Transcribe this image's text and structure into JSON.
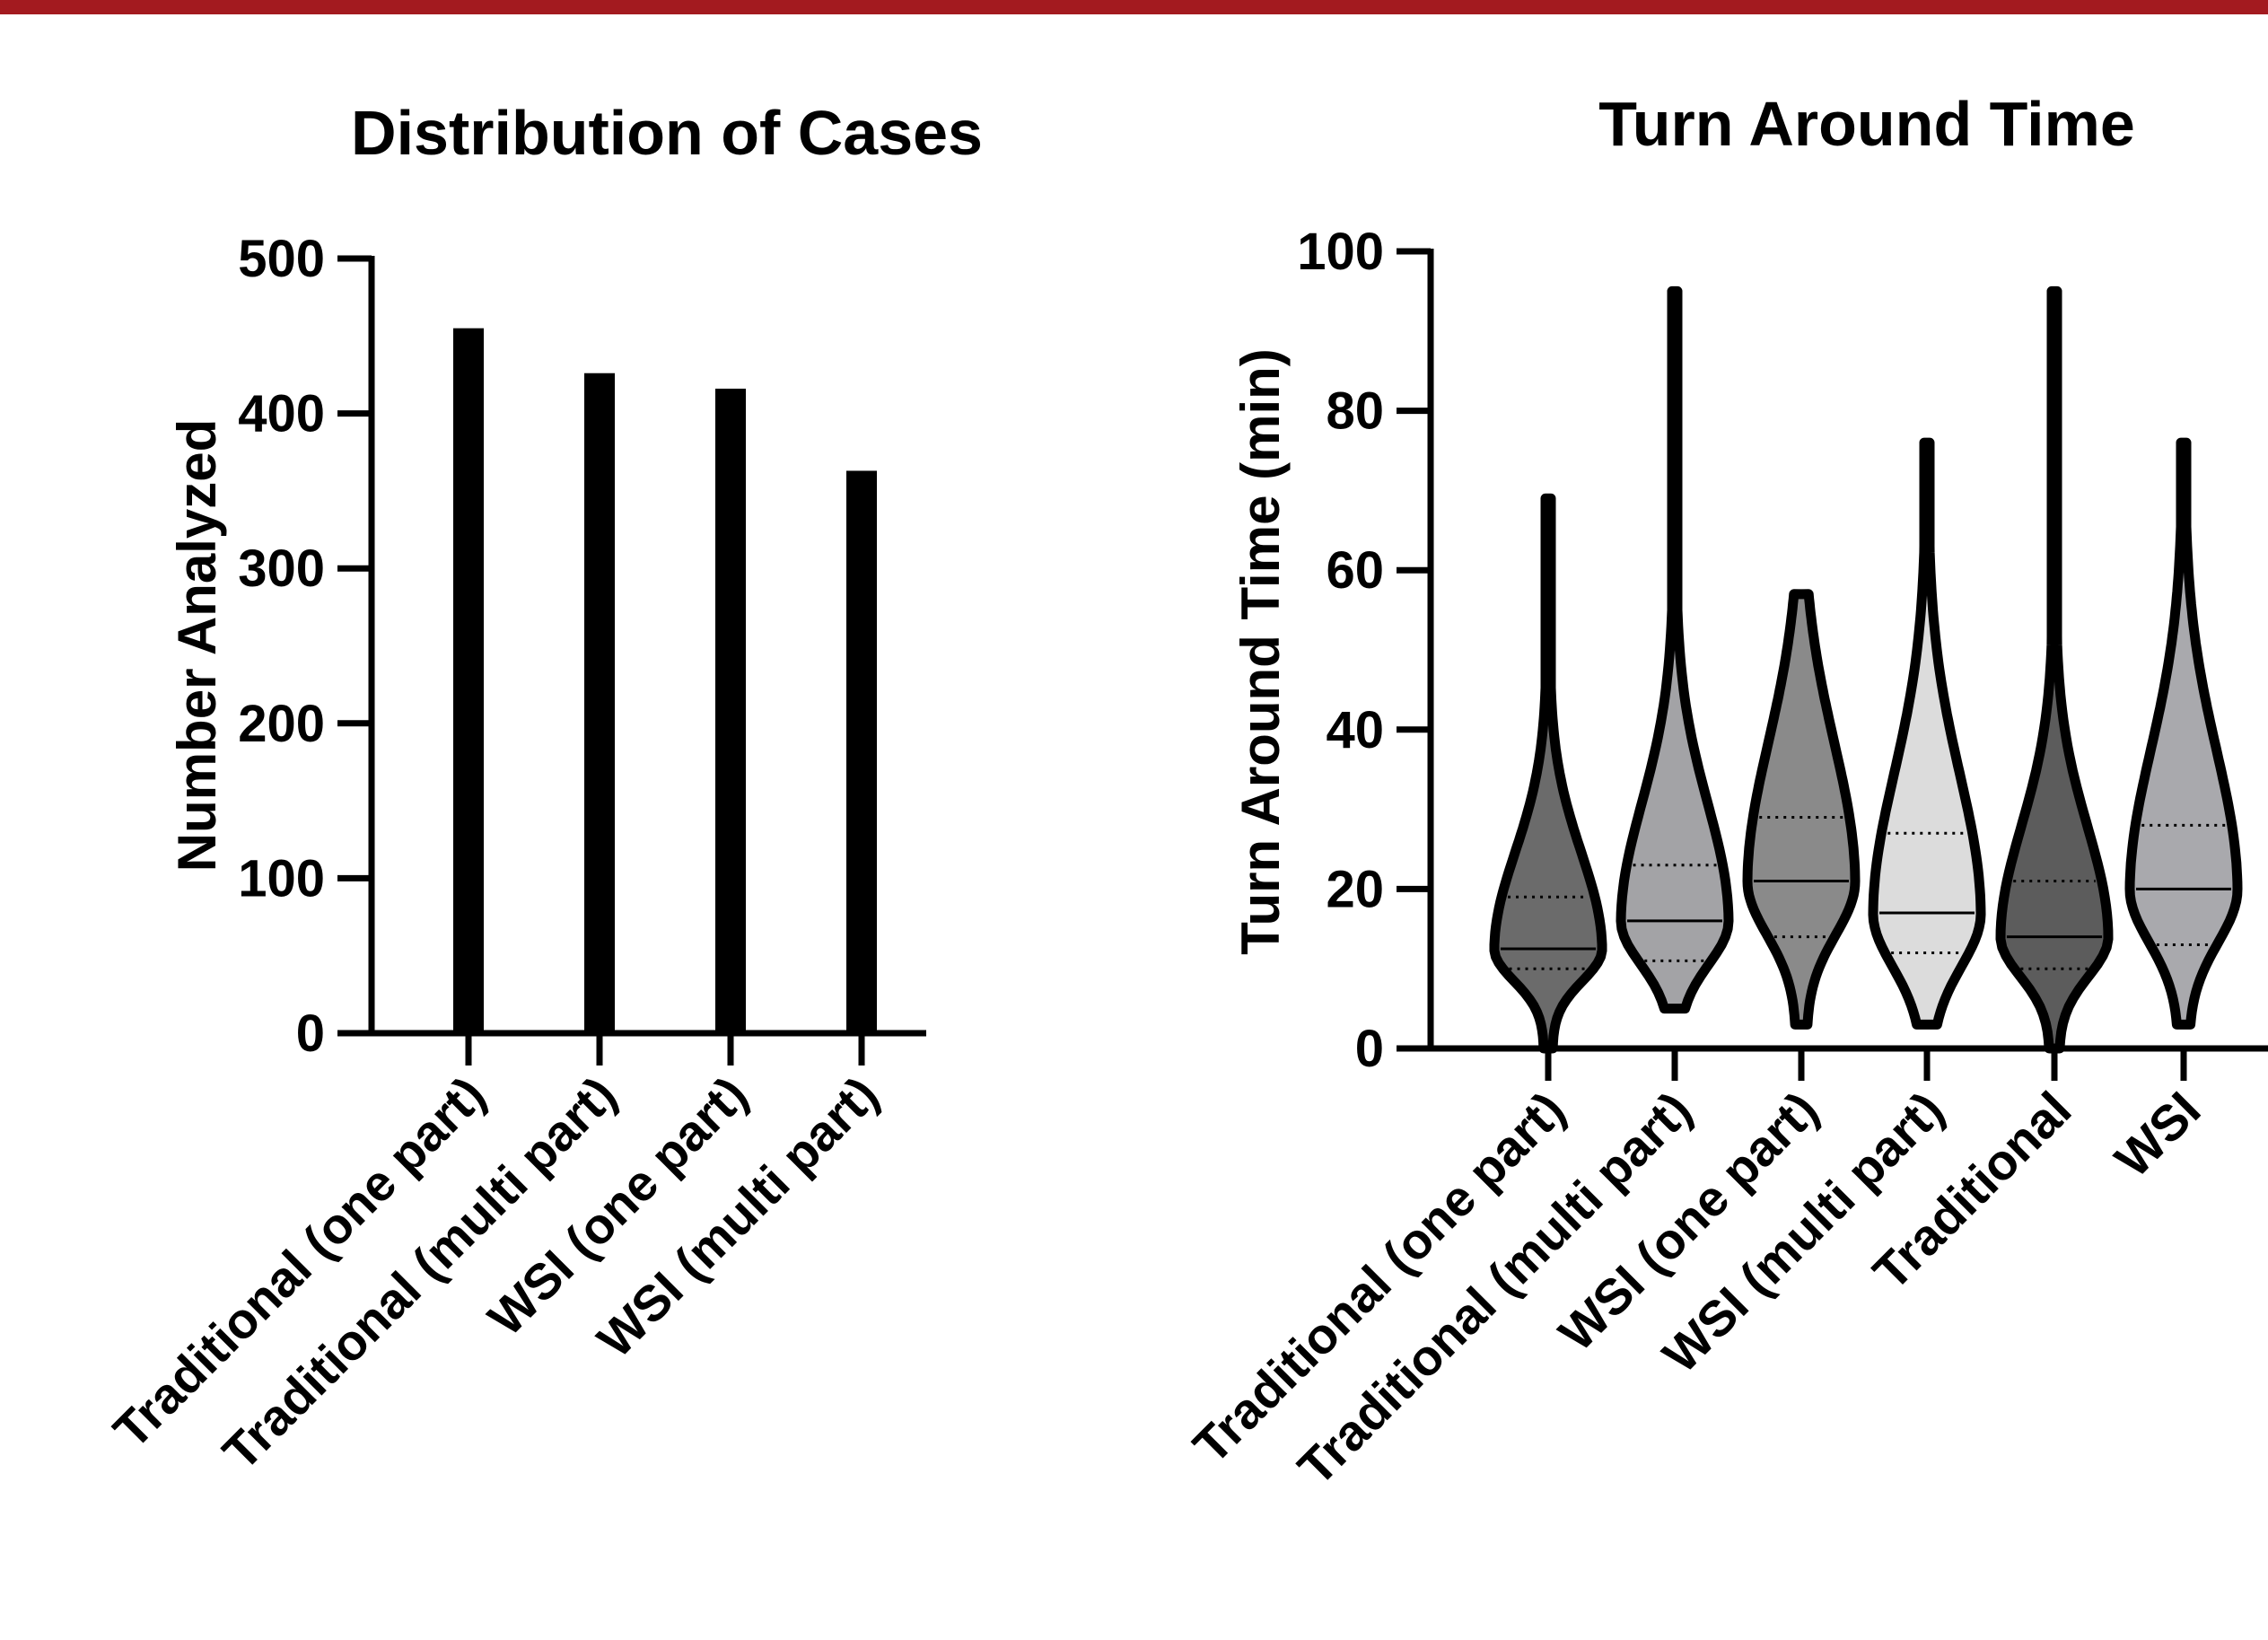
{
  "colors": {
    "top_bar": "#a31a1f",
    "bar_fill": "#000000",
    "violin_fills": [
      "#6b6b6b",
      "#a3a3a6",
      "#8a8a8a",
      "#dcdcdc",
      "#5c5c5c",
      "#a9a9ad"
    ]
  },
  "chart_data": [
    {
      "type": "bar",
      "title": "Distribution of Cases",
      "xlabel": "",
      "ylabel": "Number Analyzed",
      "ylim": [
        0,
        500
      ],
      "yticks": [
        "0",
        "100",
        "200",
        "300",
        "400",
        "500"
      ],
      "categories": [
        "Traditional (one part)",
        "Traditional (multi part)",
        "WSI (one part)",
        "WSI (multi part)"
      ],
      "values": [
        455,
        426,
        416,
        363
      ],
      "grid": false
    },
    {
      "type": "violin",
      "title": "Turn Around Time",
      "xlabel": "",
      "ylabel": "Turn Around Time (min)",
      "ylim": [
        0,
        100
      ],
      "yticks": [
        "0",
        "20",
        "40",
        "60",
        "80",
        "100"
      ],
      "categories": [
        "Traditional (one part)",
        "Traditional (multi part)",
        "WSI (one part)",
        "WSI (multi part)",
        "Traditional",
        "WSI"
      ],
      "series": [
        {
          "min": 0,
          "q1": 10,
          "median": 12.5,
          "q3": 19,
          "max": 69
        },
        {
          "min": 5,
          "q1": 11,
          "median": 16,
          "q3": 23,
          "max": 95
        },
        {
          "min": 3,
          "q1": 14,
          "median": 21,
          "q3": 29,
          "max": 57
        },
        {
          "min": 3,
          "q1": 12,
          "median": 17,
          "q3": 27,
          "max": 76
        },
        {
          "min": 0,
          "q1": 10,
          "median": 14,
          "q3": 21,
          "max": 95
        },
        {
          "min": 3,
          "q1": 13,
          "median": 20,
          "q3": 28,
          "max": 76
        }
      ],
      "grid": false
    }
  ]
}
